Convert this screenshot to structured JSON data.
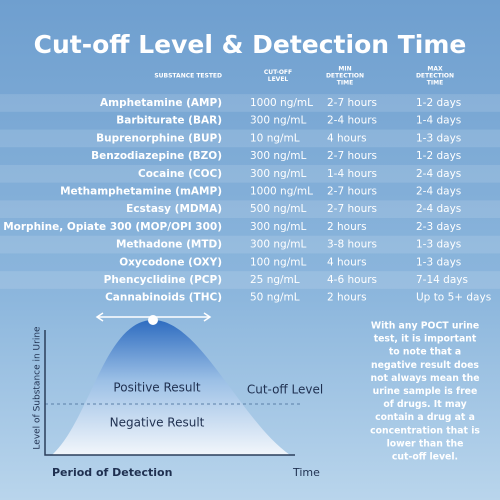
{
  "title": "Cut-off Level & Detection Time",
  "table": {
    "headers": [
      "SUBSTANCE TESTED",
      [
        "CUT-OFF",
        "LEVEL"
      ],
      [
        "MIN",
        "DETECTION",
        "TIME"
      ],
      [
        "MAX",
        "DETECTION",
        "TIME"
      ]
    ],
    "rows": [
      [
        "Amphetamine (AMP)",
        "1000 ng/mL",
        "2-7 hours",
        "1-2 days"
      ],
      [
        "Barbiturate (BAR)",
        "300 ng/mL",
        "2-4 hours",
        "1-4 days"
      ],
      [
        "Buprenorphine (BUP)",
        "10 ng/mL",
        "4 hours",
        "1-3 days"
      ],
      [
        "Benzodiazepine (BZO)",
        "300 ng/mL",
        "2-7 hours",
        "1-2 days"
      ],
      [
        "Cocaine (COC)",
        "300 ng/mL",
        "1-4 hours",
        "2-4 days"
      ],
      [
        "Methamphetamine (mAMP)",
        "1000 ng/mL",
        "2-7 hours",
        "2-4 days"
      ],
      [
        "Ecstasy (MDMA)",
        "500 ng/mL",
        "2-7 hours",
        "2-4 days"
      ],
      [
        "Morphine, Opiate 300 (MOP/OPI 300)",
        "300 ng/mL",
        "2 hours",
        "2-3 days"
      ],
      [
        "Methadone (MTD)",
        "300 ng/mL",
        "3-8 hours",
        "1-3 days"
      ],
      [
        "Oxycodone (OXY)",
        "100 ng/mL",
        "4 hours",
        "1-3 days"
      ],
      [
        "Phencyclidine (PCP)",
        "25 ng/mL",
        "4-6 hours",
        "7-14 days"
      ],
      [
        "Cannabinoids (THC)",
        "50 ng/mL",
        "2 hours",
        "Up to 5+ days"
      ]
    ]
  },
  "diagram": {
    "y_axis": "Level of Substance in Urine",
    "x_axis": "Period of Detection",
    "x_end": "Time",
    "positive": "Positive Result",
    "negative": "Negative Result",
    "cutoff": "Cut-off Level"
  },
  "note": {
    "lines": [
      "With any POCT urine",
      "test, it is important",
      "to note that a",
      "negative result does",
      "not always mean the",
      "urine sample is free",
      "of drugs. It may",
      "contain a drug at a",
      "concentration that is",
      "lower than the",
      "cut-off level."
    ]
  }
}
